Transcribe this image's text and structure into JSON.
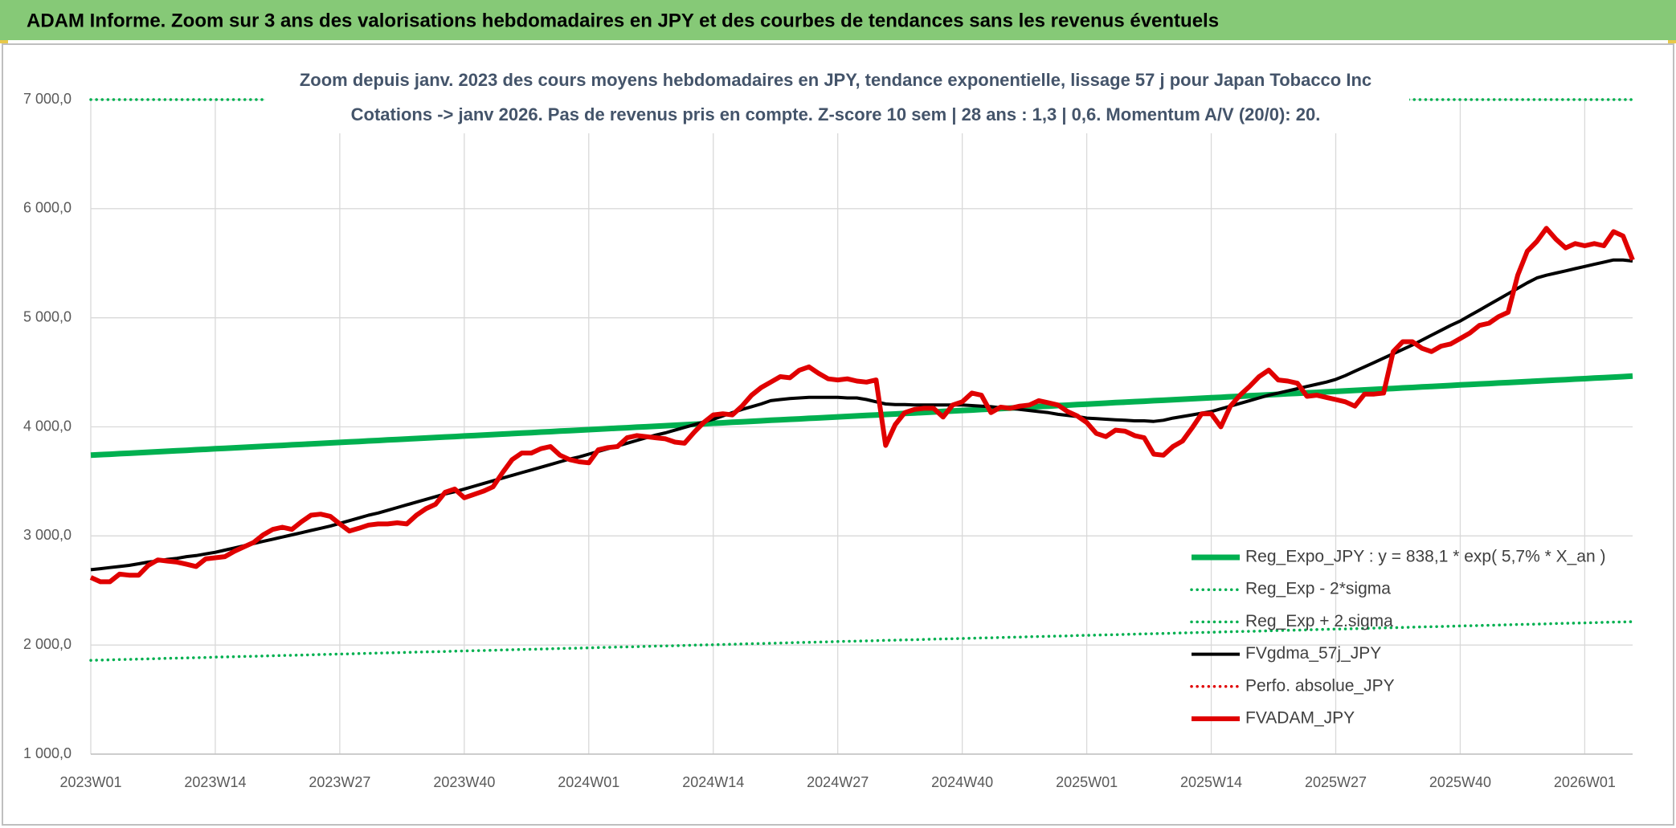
{
  "chart_data": {
    "type": "line",
    "title": "ADAM Informe. Zoom sur 3 ans des valorisations hebdomadaires en JPY et des courbes de tendances sans les revenus éventuels",
    "subtitle": [
      "Zoom depuis janv. 2023 des cours moyens hebdomadaires en JPY, tendance exponentielle, lissage 57 j pour Japan Tobacco Inc",
      "Cotations -> janv 2026. Pas de revenus pris en compte. Z-score 10 sem | 28 ans : 1,3 | 0,6. Momentum A/V (20/0): 20."
    ],
    "grid": true,
    "ylim": [
      1000,
      7000
    ],
    "yticks": [
      {
        "value": 1000,
        "label": "1 000,0"
      },
      {
        "value": 2000,
        "label": "2 000,0"
      },
      {
        "value": 3000,
        "label": "3 000,0"
      },
      {
        "value": 4000,
        "label": "4 000,0"
      },
      {
        "value": 5000,
        "label": "5 000,0"
      },
      {
        "value": 6000,
        "label": "6 000,0"
      },
      {
        "value": 7000,
        "label": "7 000,0"
      }
    ],
    "categories": [
      "2023W01",
      null,
      null,
      null,
      null,
      null,
      null,
      null,
      null,
      null,
      null,
      null,
      null,
      "2023W14",
      null,
      null,
      null,
      null,
      null,
      null,
      null,
      null,
      null,
      null,
      null,
      null,
      "2023W27",
      null,
      null,
      null,
      null,
      null,
      null,
      null,
      null,
      null,
      null,
      null,
      null,
      "2023W40",
      null,
      null,
      null,
      null,
      null,
      null,
      null,
      null,
      null,
      null,
      null,
      null,
      "2024W01",
      null,
      null,
      null,
      null,
      null,
      null,
      null,
      null,
      null,
      null,
      null,
      null,
      "2024W14",
      null,
      null,
      null,
      null,
      null,
      null,
      null,
      null,
      null,
      null,
      null,
      null,
      "2024W27",
      null,
      null,
      null,
      null,
      null,
      null,
      null,
      null,
      null,
      null,
      null,
      null,
      "2024W40",
      null,
      null,
      null,
      null,
      null,
      null,
      null,
      null,
      null,
      null,
      null,
      null,
      "2025W01",
      null,
      null,
      null,
      null,
      null,
      null,
      null,
      null,
      null,
      null,
      null,
      null,
      "2025W14",
      null,
      null,
      null,
      null,
      null,
      null,
      null,
      null,
      null,
      null,
      null,
      null,
      "2025W27",
      null,
      null,
      null,
      null,
      null,
      null,
      null,
      null,
      null,
      null,
      null,
      null,
      "2025W40",
      null,
      null,
      null,
      null,
      null,
      null,
      null,
      null,
      null,
      null,
      null,
      null,
      "2026W01",
      null,
      null,
      null,
      null,
      null
    ],
    "series": [
      {
        "name": "Reg_Expo_JPY : y = 838,1 * exp( 5,7% *  X_an )",
        "color": "#00b050",
        "line_style": "solid",
        "values": [
          3740,
          3745,
          3749,
          3754,
          3758,
          3763,
          3767,
          3772,
          3776,
          3781,
          3785,
          3790,
          3794,
          3799,
          3803,
          3808,
          3812,
          3817,
          3821,
          3826,
          3830,
          3835,
          3839,
          3844,
          3848,
          3853,
          3857,
          3862,
          3866,
          3871,
          3875,
          3880,
          3884,
          3889,
          3893,
          3898,
          3902,
          3907,
          3911,
          3916,
          3920,
          3925,
          3929,
          3934,
          3938,
          3943,
          3947,
          3952,
          3956,
          3961,
          3965,
          3970,
          3974,
          3979,
          3983,
          3988,
          3992,
          3997,
          4001,
          4006,
          4010,
          4015,
          4019,
          4024,
          4028,
          4033,
          4037,
          4042,
          4046,
          4051,
          4055,
          4060,
          4064,
          4069,
          4073,
          4078,
          4082,
          4087,
          4091,
          4096,
          4100,
          4105,
          4109,
          4114,
          4118,
          4123,
          4127,
          4132,
          4136,
          4141,
          4145,
          4150,
          4154,
          4159,
          4163,
          4168,
          4172,
          4177,
          4181,
          4186,
          4190,
          4195,
          4199,
          4204,
          4208,
          4213,
          4217,
          4222,
          4226,
          4231,
          4235,
          4240,
          4244,
          4249,
          4253,
          4258,
          4262,
          4267,
          4271,
          4276,
          4280,
          4285,
          4289,
          4294,
          4298,
          4303,
          4307,
          4312,
          4316,
          4321,
          4325,
          4330,
          4334,
          4339,
          4343,
          4348,
          4352,
          4357,
          4361,
          4366,
          4370,
          4375,
          4379,
          4384,
          4388,
          4393,
          4397,
          4402,
          4406,
          4411,
          4415,
          4420,
          4424,
          4429,
          4433,
          4438,
          4442,
          4447,
          4451,
          4456,
          4460,
          4465
        ]
      },
      {
        "name": "Reg_Exp - 2*sigma",
        "color": "#00b050",
        "line_style": "dotted",
        "values": [
          1860,
          1862,
          1864,
          1867,
          1869,
          1871,
          1873,
          1875,
          1878,
          1880,
          1882,
          1884,
          1886,
          1889,
          1891,
          1893,
          1895,
          1897,
          1900,
          1902,
          1904,
          1906,
          1908,
          1911,
          1913,
          1915,
          1917,
          1919,
          1922,
          1924,
          1926,
          1928,
          1930,
          1933,
          1935,
          1937,
          1939,
          1941,
          1944,
          1946,
          1948,
          1950,
          1952,
          1955,
          1957,
          1959,
          1961,
          1963,
          1966,
          1968,
          1970,
          1972,
          1974,
          1977,
          1979,
          1981,
          1983,
          1985,
          1988,
          1990,
          1992,
          1994,
          1996,
          1999,
          2001,
          2003,
          2005,
          2007,
          2010,
          2012,
          2014,
          2016,
          2018,
          2021,
          2023,
          2025,
          2027,
          2029,
          2032,
          2034,
          2036,
          2038,
          2040,
          2043,
          2045,
          2047,
          2049,
          2051,
          2054,
          2056,
          2058,
          2060,
          2062,
          2065,
          2067,
          2069,
          2071,
          2073,
          2076,
          2078,
          2080,
          2082,
          2084,
          2087,
          2089,
          2091,
          2093,
          2095,
          2098,
          2100,
          2102,
          2104,
          2106,
          2109,
          2111,
          2113,
          2115,
          2117,
          2120,
          2122,
          2124,
          2126,
          2128,
          2131,
          2133,
          2135,
          2137,
          2139,
          2142,
          2144,
          2146,
          2148,
          2150,
          2153,
          2155,
          2157,
          2159,
          2161,
          2164,
          2166,
          2168,
          2170,
          2172,
          2175,
          2177,
          2179,
          2181,
          2183,
          2186,
          2188,
          2190,
          2192,
          2194,
          2197,
          2199,
          2201,
          2203,
          2205,
          2208,
          2210,
          2212,
          2214
        ]
      },
      {
        "name": "Reg_Exp + 2.sigma",
        "color": "#00b050",
        "line_style": "dotted",
        "values": [
          7000,
          7000,
          7000,
          7000,
          7000,
          7000,
          7000,
          7000,
          7000,
          7000,
          7000,
          7000,
          7000,
          7000,
          7000,
          7000,
          7000,
          7000,
          7000,
          7000,
          7000,
          7000,
          7000,
          7000,
          7000,
          7000,
          7000,
          7000,
          7000,
          7000,
          7000,
          7000,
          7000,
          7000,
          7000,
          7000,
          7000,
          7000,
          7000,
          7000,
          7000,
          7000,
          7000,
          7000,
          7000,
          7000,
          7000,
          7000,
          7000,
          7000,
          7000,
          7000,
          7000,
          7000,
          7000,
          7000,
          7000,
          7000,
          7000,
          7000,
          7000,
          7000,
          7000,
          7000,
          7000,
          7000,
          7000,
          7000,
          7000,
          7000,
          7000,
          7000,
          7000,
          7000,
          7000,
          7000,
          7000,
          7000,
          7000,
          7000,
          7000,
          7000,
          7000,
          7000,
          7000,
          7000,
          7000,
          7000,
          7000,
          7000,
          7000,
          7000,
          7000,
          7000,
          7000,
          7000,
          7000,
          7000,
          7000,
          7000,
          7000,
          7000,
          7000,
          7000,
          7000,
          7000,
          7000,
          7000,
          7000,
          7000,
          7000,
          7000,
          7000,
          7000,
          7000,
          7000,
          7000,
          7000,
          7000,
          7000,
          7000,
          7000,
          7000,
          7000,
          7000,
          7000,
          7000,
          7000,
          7000,
          7000,
          7000,
          7000,
          7000,
          7000,
          7000,
          7000,
          7000,
          7000,
          7000,
          7000,
          7000,
          7000,
          7000,
          7000,
          7000,
          7000,
          7000,
          7000,
          7000,
          7000,
          7000,
          7000,
          7000,
          7000,
          7000,
          7000,
          7000,
          7000,
          7000,
          7000,
          7000,
          7000
        ]
      },
      {
        "name": "FVgdma_57j_JPY",
        "color": "#000000",
        "line_style": "solid",
        "values": [
          2690,
          2700,
          2710,
          2720,
          2730,
          2745,
          2760,
          2770,
          2785,
          2795,
          2810,
          2820,
          2835,
          2850,
          2870,
          2890,
          2910,
          2930,
          2950,
          2970,
          2990,
          3010,
          3030,
          3050,
          3070,
          3090,
          3115,
          3140,
          3165,
          3190,
          3210,
          3235,
          3260,
          3285,
          3310,
          3335,
          3360,
          3385,
          3405,
          3430,
          3455,
          3480,
          3505,
          3530,
          3555,
          3580,
          3605,
          3630,
          3655,
          3680,
          3705,
          3725,
          3750,
          3775,
          3800,
          3825,
          3850,
          3875,
          3900,
          3925,
          3945,
          3970,
          3995,
          4020,
          4045,
          4070,
          4100,
          4130,
          4160,
          4185,
          4210,
          4240,
          4250,
          4260,
          4265,
          4270,
          4270,
          4270,
          4270,
          4265,
          4265,
          4250,
          4230,
          4210,
          4205,
          4205,
          4200,
          4200,
          4200,
          4200,
          4200,
          4200,
          4195,
          4190,
          4185,
          4175,
          4170,
          4160,
          4150,
          4140,
          4130,
          4115,
          4105,
          4095,
          4080,
          4075,
          4070,
          4065,
          4060,
          4055,
          4055,
          4050,
          4060,
          4080,
          4095,
          4110,
          4125,
          4140,
          4165,
          4190,
          4215,
          4240,
          4265,
          4290,
          4310,
          4330,
          4350,
          4370,
          4390,
          4410,
          4435,
          4470,
          4510,
          4550,
          4590,
          4630,
          4670,
          4710,
          4750,
          4795,
          4840,
          4885,
          4930,
          4970,
          5020,
          5070,
          5120,
          5170,
          5220,
          5270,
          5320,
          5365,
          5390,
          5410,
          5430,
          5450,
          5470,
          5490,
          5510,
          5530,
          5530,
          5520
        ]
      },
      {
        "name": "Perfo. absolue_JPY",
        "color": "#e00000",
        "line_style": "dotted",
        "values": [
          null,
          null,
          null,
          null,
          null,
          null,
          null,
          null,
          null,
          null,
          null,
          null,
          null,
          null,
          null,
          null,
          null,
          null,
          null,
          null,
          null,
          null,
          null,
          null,
          null,
          null,
          null,
          null,
          null,
          null,
          null,
          null,
          null,
          null,
          null,
          null,
          null,
          null,
          null,
          null,
          null,
          null,
          null,
          null,
          null,
          null,
          null,
          null,
          null,
          null,
          null,
          null,
          null,
          null,
          null,
          null,
          null,
          null,
          null,
          null,
          null,
          null,
          null,
          null,
          null,
          null,
          null,
          null,
          null,
          null,
          null,
          null,
          null,
          null,
          null,
          null,
          null,
          null,
          null,
          null,
          null,
          null,
          null,
          null,
          null,
          null,
          null,
          null,
          null,
          null,
          null,
          null,
          null,
          null,
          null,
          null,
          null,
          null,
          null,
          null,
          null,
          null,
          null,
          null,
          null,
          null,
          null,
          null,
          null,
          null,
          null,
          null,
          null,
          null,
          null,
          null,
          null,
          null,
          null,
          null,
          null,
          null,
          null,
          null,
          null,
          null,
          null,
          null,
          null,
          null,
          null,
          null,
          null,
          null,
          null,
          null,
          null,
          null,
          null,
          null,
          null,
          null,
          null,
          null,
          null,
          null,
          null,
          null,
          null,
          null,
          null,
          null,
          null,
          null,
          null,
          null,
          null,
          null,
          null,
          null,
          null,
          null
        ]
      },
      {
        "name": "FVADAM_JPY",
        "color": "#e00000",
        "line_style": "solid",
        "values": [
          2620,
          2580,
          2580,
          2650,
          2640,
          2640,
          2730,
          2780,
          2770,
          2760,
          2740,
          2720,
          2790,
          2800,
          2810,
          2860,
          2900,
          2940,
          3010,
          3060,
          3080,
          3060,
          3130,
          3190,
          3200,
          3180,
          3110,
          3045,
          3070,
          3100,
          3110,
          3110,
          3120,
          3110,
          3190,
          3250,
          3290,
          3400,
          3430,
          3350,
          3380,
          3410,
          3450,
          3580,
          3700,
          3760,
          3760,
          3800,
          3820,
          3740,
          3700,
          3680,
          3670,
          3790,
          3810,
          3820,
          3900,
          3920,
          3910,
          3900,
          3890,
          3860,
          3850,
          3950,
          4040,
          4110,
          4120,
          4110,
          4190,
          4290,
          4360,
          4410,
          4460,
          4450,
          4520,
          4550,
          4490,
          4440,
          4430,
          4440,
          4420,
          4410,
          4430,
          3830,
          4020,
          4130,
          4160,
          4170,
          4170,
          4090,
          4200,
          4230,
          4310,
          4290,
          4130,
          4180,
          4170,
          4190,
          4200,
          4240,
          4220,
          4200,
          4140,
          4100,
          4040,
          3940,
          3910,
          3970,
          3960,
          3920,
          3900,
          3750,
          3740,
          3820,
          3870,
          3990,
          4120,
          4120,
          4000,
          4190,
          4290,
          4370,
          4460,
          4520,
          4430,
          4420,
          4400,
          4280,
          4290,
          4270,
          4250,
          4230,
          4190,
          4300,
          4300,
          4310,
          4690,
          4780,
          4780,
          4720,
          4690,
          4740,
          4760,
          4810,
          4860,
          4930,
          4950,
          5010,
          5050,
          5390,
          5610,
          5700,
          5820,
          5720,
          5640,
          5680,
          5660,
          5680,
          5660,
          5790,
          5750,
          5530
        ]
      }
    ]
  }
}
